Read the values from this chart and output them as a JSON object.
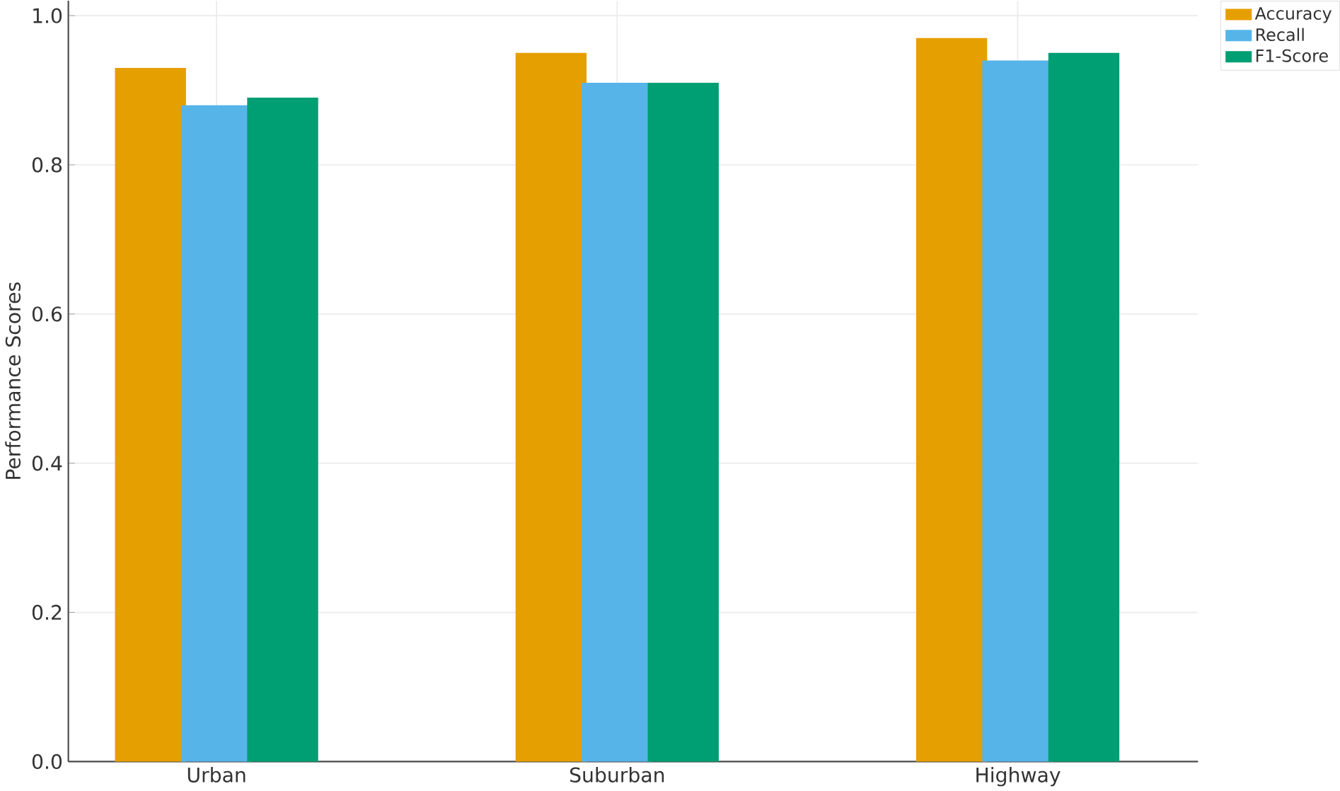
{
  "chart_data": {
    "type": "bar",
    "ylabel": "Performance Scores",
    "categories": [
      "Urban",
      "Suburban",
      "Highway"
    ],
    "series": [
      {
        "name": "Accuracy",
        "color": "#e69f00",
        "values": [
          0.93,
          0.95,
          0.97
        ]
      },
      {
        "name": "Recall",
        "color": "#56b4e9",
        "values": [
          0.88,
          0.91,
          0.94
        ]
      },
      {
        "name": "F1-Score",
        "color": "#009e73",
        "values": [
          0.89,
          0.91,
          0.95
        ]
      }
    ],
    "ylim": [
      0,
      1.02
    ],
    "yticks": [
      {
        "value": 0,
        "label": "0.0"
      },
      0.2,
      0.4,
      0.6,
      0.8,
      {
        "value": 1,
        "label": "1.0"
      }
    ],
    "grid": true,
    "legend": "top right"
  }
}
